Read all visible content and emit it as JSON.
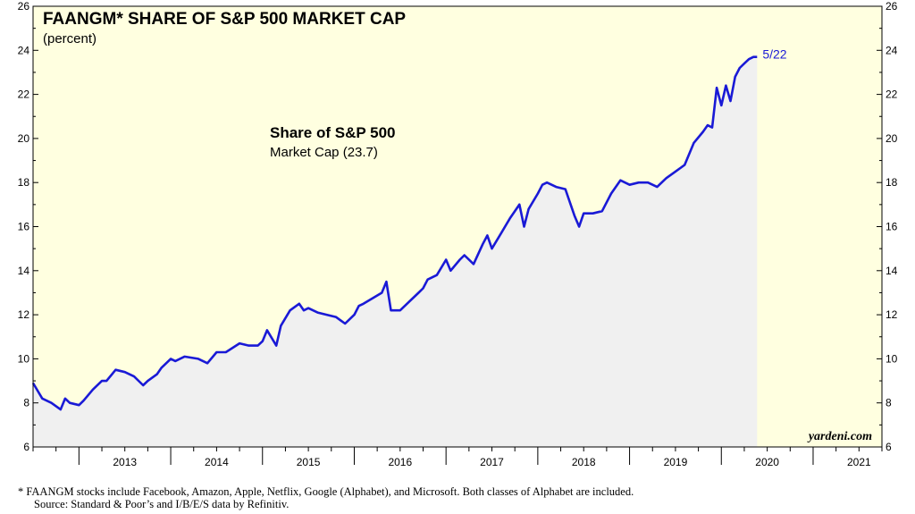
{
  "chart_data": {
    "type": "area",
    "title": "FAANGM* SHARE OF S&P 500 MARKET CAP",
    "subtitle": "(percent)",
    "annotation": {
      "title": "Share of S&P 500",
      "text": "Market Cap (23.7)"
    },
    "end_label": "5/22",
    "watermark": "yardeni.com",
    "ylim": [
      6,
      26
    ],
    "yticks": [
      6,
      8,
      10,
      12,
      14,
      16,
      18,
      20,
      22,
      24,
      26
    ],
    "xlim": [
      2012.5,
      2021.75
    ],
    "xticks": [
      "2013",
      "2014",
      "2015",
      "2016",
      "2017",
      "2018",
      "2019",
      "2020",
      "2021"
    ],
    "grid": false,
    "line_color": "#1a1ad6",
    "fill_color": "#f0f0f0",
    "background_color": "#ffffe0",
    "series": [
      {
        "x": [
          2012.5,
          2012.6,
          2012.7,
          2012.8,
          2012.85,
          2012.9,
          2013.0,
          2013.05,
          2013.15,
          2013.25,
          2013.3,
          2013.4,
          2013.5,
          2013.6,
          2013.7,
          2013.75,
          2013.85,
          2013.9,
          2014.0,
          2014.05,
          2014.15,
          2014.3,
          2014.4,
          2014.5,
          2014.6,
          2014.75,
          2014.85,
          2014.95,
          2015.0,
          2015.05,
          2015.15,
          2015.2,
          2015.3,
          2015.4,
          2015.45,
          2015.5,
          2015.6,
          2015.7,
          2015.8,
          2015.9,
          2016.0,
          2016.05,
          2016.1,
          2016.3,
          2016.35,
          2016.4,
          2016.5,
          2016.6,
          2016.7,
          2016.75,
          2016.8,
          2016.9,
          2017.0,
          2017.05,
          2017.15,
          2017.2,
          2017.3,
          2017.4,
          2017.45,
          2017.5,
          2017.6,
          2017.7,
          2017.8,
          2017.85,
          2017.9,
          2018.0,
          2018.05,
          2018.1,
          2018.2,
          2018.3,
          2018.4,
          2018.45,
          2018.5,
          2018.6,
          2018.7,
          2018.8,
          2018.9,
          2019.0,
          2019.1,
          2019.2,
          2019.3,
          2019.4,
          2019.5,
          2019.6,
          2019.7,
          2019.8,
          2019.85,
          2019.9,
          2019.95,
          2020.0,
          2020.05,
          2020.1,
          2020.15,
          2020.2,
          2020.25,
          2020.3,
          2020.35,
          2020.39
        ],
        "values": [
          8.9,
          8.2,
          8.0,
          7.7,
          8.2,
          8.0,
          7.9,
          8.1,
          8.6,
          9.0,
          9.0,
          9.5,
          9.4,
          9.2,
          8.8,
          9.0,
          9.3,
          9.6,
          10.0,
          9.9,
          10.1,
          10.0,
          9.8,
          10.3,
          10.3,
          10.7,
          10.6,
          10.6,
          10.8,
          11.3,
          10.6,
          11.5,
          12.2,
          12.5,
          12.2,
          12.3,
          12.1,
          12.0,
          11.9,
          11.6,
          12.0,
          12.4,
          12.5,
          13.0,
          13.5,
          12.2,
          12.2,
          12.6,
          13.0,
          13.2,
          13.6,
          13.8,
          14.5,
          14.0,
          14.5,
          14.7,
          14.3,
          15.2,
          15.6,
          15.0,
          15.7,
          16.4,
          17.0,
          16.0,
          16.8,
          17.5,
          17.9,
          18.0,
          17.8,
          17.7,
          16.5,
          16.0,
          16.6,
          16.6,
          16.7,
          17.5,
          18.1,
          17.9,
          18.0,
          18.0,
          17.8,
          18.2,
          18.5,
          18.8,
          19.8,
          20.3,
          20.6,
          20.5,
          22.3,
          21.5,
          22.4,
          21.7,
          22.8,
          23.2,
          23.4,
          23.6,
          23.7,
          23.7
        ]
      }
    ]
  },
  "footnote": {
    "line1": "*   FAANGM stocks include Facebook, Amazon, Apple, Netflix, Google (Alphabet), and Microsoft. Both classes of Alphabet are included.",
    "line2": "Source: Standard & Poor’s and I/B/E/S data by Refinitiv."
  }
}
